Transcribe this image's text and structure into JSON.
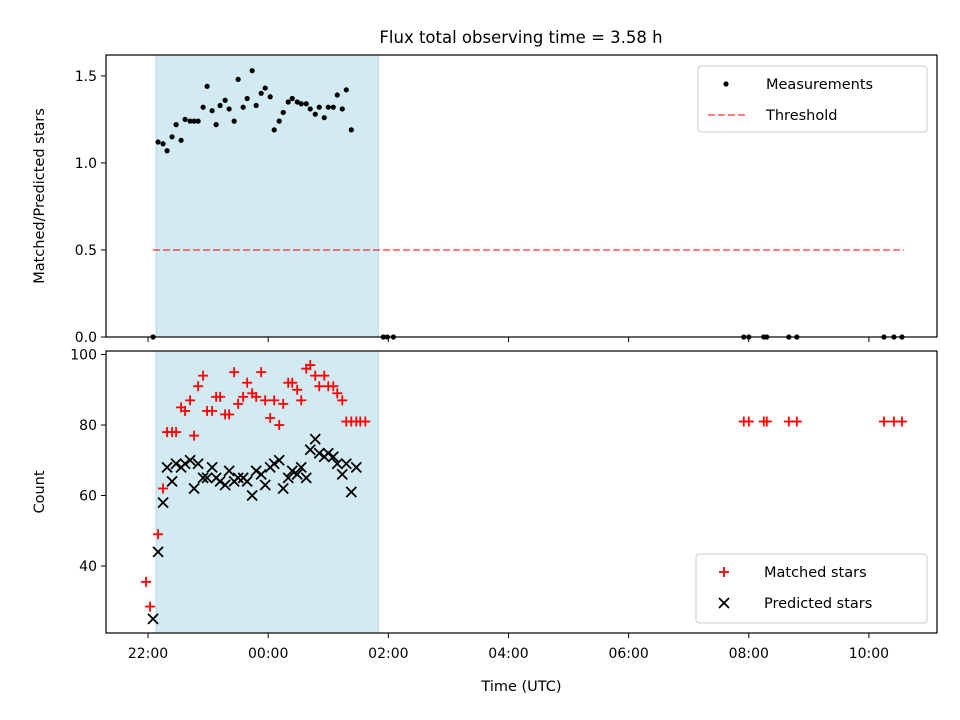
{
  "title": "Flux total observing time = 3.58 h",
  "colors": {
    "observing_span": "#add8e6",
    "threshold": "#ff0000",
    "matched": "#ff0000",
    "predicted": "#000000",
    "measurements": "#000000"
  },
  "chart_data": [
    {
      "type": "scatter",
      "ylabel": "Matched/Predicted stars",
      "ylim": [
        0,
        1.62
      ],
      "yticks": [
        0,
        0.5,
        1.0,
        1.5
      ],
      "ytick_labels": [
        "0.0",
        "0.5",
        "1.0",
        "1.5"
      ],
      "xlim": [
        "21:18",
        "11:08"
      ],
      "shaded_span": [
        "22:08",
        "01:50"
      ],
      "legend": {
        "position": "top-right",
        "entries": [
          "Measurements",
          "Threshold"
        ]
      },
      "threshold": {
        "y": 0.5,
        "x_range": [
          "22:05",
          "10:35"
        ],
        "style": "dashed"
      },
      "series": [
        {
          "name": "Measurements",
          "marker": "dot",
          "points": [
            [
              "22:05",
              0.0
            ],
            [
              "22:10",
              1.12
            ],
            [
              "22:15",
              1.11
            ],
            [
              "22:19",
              1.07
            ],
            [
              "22:24",
              1.15
            ],
            [
              "22:28",
              1.22
            ],
            [
              "22:33",
              1.13
            ],
            [
              "22:37",
              1.25
            ],
            [
              "22:42",
              1.24
            ],
            [
              "22:46",
              1.24
            ],
            [
              "22:50",
              1.24
            ],
            [
              "22:55",
              1.32
            ],
            [
              "22:59",
              1.44
            ],
            [
              "23:04",
              1.3
            ],
            [
              "23:08",
              1.22
            ],
            [
              "23:12",
              1.33
            ],
            [
              "23:17",
              1.36
            ],
            [
              "23:21",
              1.31
            ],
            [
              "23:26",
              1.24
            ],
            [
              "23:30",
              1.48
            ],
            [
              "23:35",
              1.32
            ],
            [
              "23:39",
              1.37
            ],
            [
              "23:44",
              1.53
            ],
            [
              "23:48",
              1.33
            ],
            [
              "23:53",
              1.4
            ],
            [
              "23:57",
              1.43
            ],
            [
              "00:02",
              1.38
            ],
            [
              "00:06",
              1.19
            ],
            [
              "00:11",
              1.24
            ],
            [
              "00:15",
              1.29
            ],
            [
              "00:20",
              1.35
            ],
            [
              "00:24",
              1.37
            ],
            [
              "00:29",
              1.35
            ],
            [
              "00:33",
              1.34
            ],
            [
              "00:38",
              1.34
            ],
            [
              "00:42",
              1.31
            ],
            [
              "00:47",
              1.28
            ],
            [
              "00:51",
              1.32
            ],
            [
              "00:56",
              1.26
            ],
            [
              "01:00",
              1.32
            ],
            [
              "01:05",
              1.32
            ],
            [
              "01:09",
              1.39
            ],
            [
              "01:14",
              1.31
            ],
            [
              "01:18",
              1.42
            ],
            [
              "01:23",
              1.19
            ],
            [
              "01:55",
              0.0
            ],
            [
              "01:59",
              0.0
            ],
            [
              "02:05",
              0.0
            ],
            [
              "07:55",
              0.0
            ],
            [
              "08:00",
              0.0
            ],
            [
              "08:15",
              0.0
            ],
            [
              "08:18",
              0.0
            ],
            [
              "08:40",
              0.0
            ],
            [
              "08:48",
              0.0
            ],
            [
              "10:15",
              0.0
            ],
            [
              "10:25",
              0.0
            ],
            [
              "10:33",
              0.0
            ]
          ]
        }
      ]
    },
    {
      "type": "scatter",
      "ylabel": "Count",
      "xlabel": "Time (UTC)",
      "ylim": [
        21,
        101
      ],
      "yticks": [
        40,
        60,
        80,
        100
      ],
      "ytick_labels": [
        "40",
        "60",
        "80",
        "100"
      ],
      "xlim": [
        "21:18",
        "11:08"
      ],
      "xtick_labels": [
        "22:00",
        "00:00",
        "02:00",
        "04:00",
        "06:00",
        "08:00",
        "10:00"
      ],
      "shaded_span": [
        "22:08",
        "01:50"
      ],
      "legend": {
        "position": "lower-right",
        "entries": [
          "Matched stars",
          "Predicted stars"
        ]
      },
      "series": [
        {
          "name": "Matched stars",
          "marker": "plus",
          "points": [
            [
              "21:58",
              35.5
            ],
            [
              "22:02",
              28.5
            ],
            [
              "22:10",
              49
            ],
            [
              "22:15",
              62
            ],
            [
              "22:19",
              78
            ],
            [
              "22:24",
              78
            ],
            [
              "22:28",
              78
            ],
            [
              "22:33",
              85
            ],
            [
              "22:37",
              84
            ],
            [
              "22:42",
              87
            ],
            [
              "22:46",
              77
            ],
            [
              "22:50",
              91
            ],
            [
              "22:55",
              94
            ],
            [
              "22:59",
              84
            ],
            [
              "23:04",
              84
            ],
            [
              "23:08",
              88
            ],
            [
              "23:12",
              88
            ],
            [
              "23:17",
              83
            ],
            [
              "23:21",
              83
            ],
            [
              "23:26",
              95
            ],
            [
              "23:30",
              86
            ],
            [
              "23:35",
              88
            ],
            [
              "23:39",
              92
            ],
            [
              "23:44",
              89
            ],
            [
              "23:48",
              88
            ],
            [
              "23:53",
              95
            ],
            [
              "23:57",
              87
            ],
            [
              "00:02",
              82
            ],
            [
              "00:06",
              87
            ],
            [
              "00:11",
              80
            ],
            [
              "00:15",
              86
            ],
            [
              "00:20",
              92
            ],
            [
              "00:24",
              92
            ],
            [
              "00:29",
              90
            ],
            [
              "00:33",
              87
            ],
            [
              "00:38",
              96
            ],
            [
              "00:42",
              97
            ],
            [
              "00:47",
              94
            ],
            [
              "00:51",
              91
            ],
            [
              "00:56",
              94
            ],
            [
              "01:00",
              91
            ],
            [
              "01:05",
              91
            ],
            [
              "01:09",
              89
            ],
            [
              "01:14",
              87
            ],
            [
              "01:18",
              81
            ],
            [
              "01:23",
              81
            ],
            [
              "01:28",
              81
            ],
            [
              "01:32",
              81
            ],
            [
              "01:37",
              81
            ],
            [
              "07:55",
              81
            ],
            [
              "08:00",
              81
            ],
            [
              "08:15",
              81
            ],
            [
              "08:18",
              81
            ],
            [
              "08:40",
              81
            ],
            [
              "08:48",
              81
            ],
            [
              "10:15",
              81
            ],
            [
              "10:25",
              81
            ],
            [
              "10:33",
              81
            ]
          ]
        },
        {
          "name": "Predicted stars",
          "marker": "x",
          "points": [
            [
              "22:05",
              25
            ],
            [
              "22:10",
              44
            ],
            [
              "22:15",
              58
            ],
            [
              "22:19",
              68
            ],
            [
              "22:24",
              64
            ],
            [
              "22:28",
              69
            ],
            [
              "22:33",
              68
            ],
            [
              "22:37",
              69
            ],
            [
              "22:42",
              70
            ],
            [
              "22:46",
              62
            ],
            [
              "22:50",
              69
            ],
            [
              "22:55",
              65
            ],
            [
              "22:59",
              65
            ],
            [
              "23:04",
              68
            ],
            [
              "23:08",
              65
            ],
            [
              "23:12",
              64
            ],
            [
              "23:17",
              63
            ],
            [
              "23:21",
              67
            ],
            [
              "23:26",
              64
            ],
            [
              "23:30",
              65
            ],
            [
              "23:35",
              65
            ],
            [
              "23:39",
              64
            ],
            [
              "23:44",
              60
            ],
            [
              "23:48",
              67
            ],
            [
              "23:53",
              66
            ],
            [
              "23:57",
              63
            ],
            [
              "00:02",
              68
            ],
            [
              "00:06",
              69
            ],
            [
              "00:11",
              70
            ],
            [
              "00:15",
              62
            ],
            [
              "00:20",
              65
            ],
            [
              "00:24",
              67
            ],
            [
              "00:29",
              66
            ],
            [
              "00:33",
              68
            ],
            [
              "00:38",
              65
            ],
            [
              "00:42",
              73
            ],
            [
              "00:47",
              76
            ],
            [
              "00:51",
              72
            ],
            [
              "00:56",
              71
            ],
            [
              "01:00",
              72
            ],
            [
              "01:05",
              71
            ],
            [
              "01:09",
              69
            ],
            [
              "01:14",
              66
            ],
            [
              "01:18",
              69
            ],
            [
              "01:23",
              61
            ],
            [
              "01:28",
              68
            ]
          ]
        }
      ]
    }
  ]
}
